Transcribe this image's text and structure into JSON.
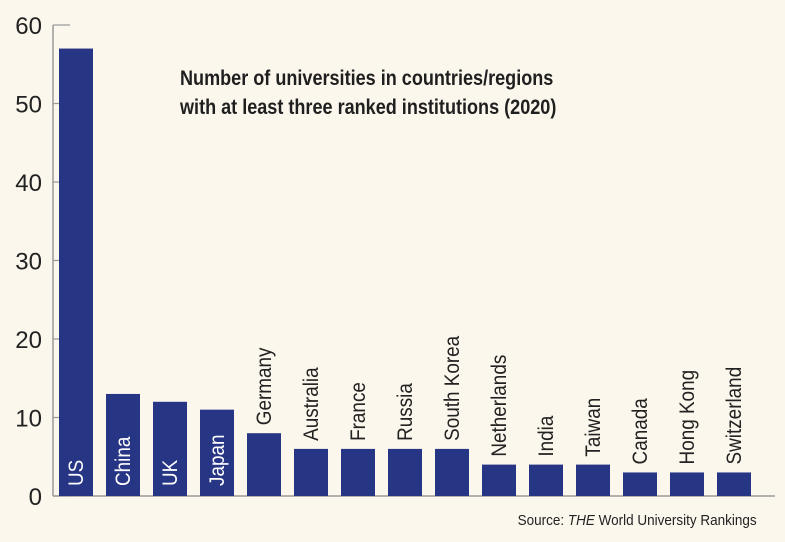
{
  "chart_data": {
    "type": "bar",
    "title_lines": [
      "Number of universities in countries/regions",
      "with at least three ranked institutions (2020)"
    ],
    "categories": [
      "US",
      "China",
      "UK",
      "Japan",
      "Germany",
      "Australia",
      "France",
      "Russia",
      "South Korea",
      "Netherlands",
      "India",
      "Taiwan",
      "Canada",
      "Hong Kong",
      "Switzerland"
    ],
    "values": [
      57,
      13,
      12,
      11,
      8,
      6,
      6,
      6,
      6,
      4,
      4,
      4,
      3,
      3,
      3
    ],
    "ylim": [
      0,
      60
    ],
    "yticks": [
      0,
      10,
      20,
      30,
      40,
      50,
      60
    ],
    "xlabel": "",
    "ylabel": "",
    "grid": false,
    "label_inside_bar": [
      true,
      true,
      true,
      true,
      false,
      false,
      false,
      false,
      false,
      false,
      false,
      false,
      false,
      false,
      false
    ],
    "colors": {
      "bar": "#273585",
      "background": "#fcf7ed",
      "axis": "#9a9a9a"
    }
  },
  "source": {
    "prefix": "Source: ",
    "italic": "THE",
    "suffix": " World University Rankings"
  }
}
